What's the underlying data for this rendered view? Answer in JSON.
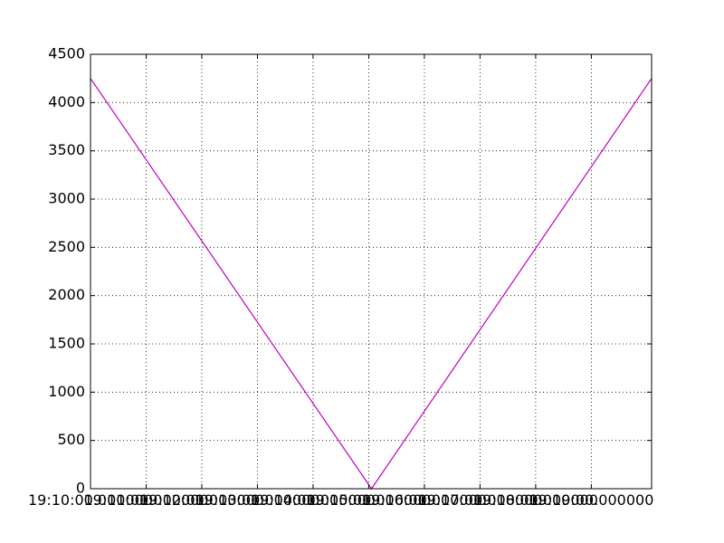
{
  "chart_data": {
    "type": "line",
    "title": "",
    "xlabel": "",
    "ylabel": "",
    "x_tick_labels": [
      "19:10:00.000000",
      "19:11:00.000000",
      "19:12:00.000000",
      "19:13:00.000000",
      "19:14:00.000000",
      "19:15:00.000000",
      "19:16:00.000000",
      "19:17:00.000000",
      "19:18:00.000000",
      "19:19:00.000000"
    ],
    "x_tick_values": [
      "19:10:00",
      "19:11:00",
      "19:12:00",
      "19:13:00",
      "19:14:00",
      "19:15:00",
      "19:16:00",
      "19:17:00",
      "19:18:00",
      "19:19:00"
    ],
    "xlim": [
      "19:10:00",
      "19:20:05"
    ],
    "ylim": [
      0,
      4500
    ],
    "y_ticks": [
      0,
      500,
      1000,
      1500,
      2000,
      2500,
      3000,
      3500,
      4000,
      4500
    ],
    "grid": true,
    "series": [
      {
        "color": "#bf00bf",
        "x": [
          "19:10:00",
          "19:15:03",
          "19:20:05"
        ],
        "values": [
          4250,
          0,
          4250
        ]
      }
    ]
  }
}
